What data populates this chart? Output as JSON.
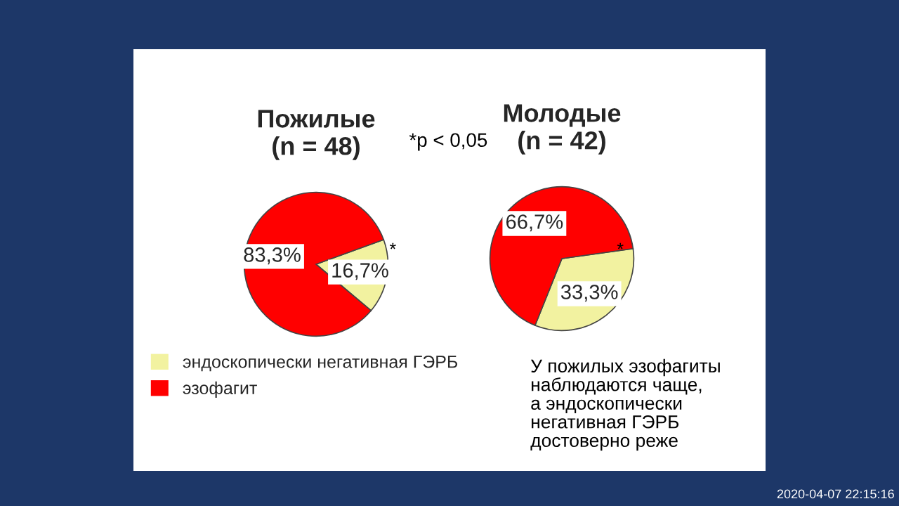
{
  "chart_data": [
    {
      "type": "pie",
      "title": "Пожилые\n(n = 48)",
      "categories": [
        "эндоскопически негативная ГЭРБ",
        "эзофагит"
      ],
      "values": [
        16.7,
        83.3
      ],
      "colors": [
        "#f2f2a0",
        "#ff0000"
      ],
      "value_labels": [
        "16,7%",
        "83,3%"
      ],
      "legend": "bottom left",
      "annotations": [
        "*p < 0,05",
        "*"
      ]
    },
    {
      "type": "pie",
      "title": "Молодые\n(n = 42)",
      "values": [
        33.3,
        66.7
      ],
      "colors": [
        "#f2f2a0",
        "#ff0000"
      ],
      "value_labels": [
        "33,3%",
        "66,7%"
      ],
      "annotations": [
        "*",
        "У пожилых эзофагиты\nнаблюдаются чаще,\nа эндоскопически\nнегативная ГЭРБ\nдостоверно реже",
        "2020-04-07 22:15:16"
      ]
    }
  ]
}
